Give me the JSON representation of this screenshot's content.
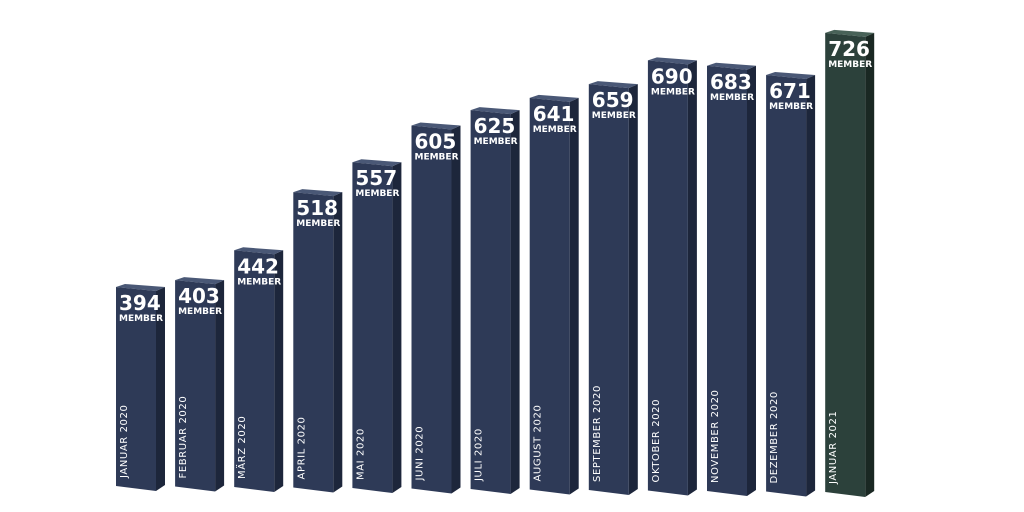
{
  "chart_data": {
    "type": "bar",
    "categories": [
      "JANUAR 2020",
      "FEBRUAR 2020",
      "MÄRZ 2020",
      "APRIL 2020",
      "MAI 2020",
      "JUNI 2020",
      "JULI 2020",
      "AUGUST 2020",
      "SEPTEMBER 2020",
      "OKTOBER 2020",
      "NOVEMBER 2020",
      "DEZEMBER 2020",
      "JANUAR 2021"
    ],
    "values": [
      394,
      403,
      442,
      518,
      557,
      605,
      625,
      641,
      659,
      690,
      683,
      671,
      726
    ],
    "value_labels": [
      "394",
      "403",
      "442",
      "518",
      "557",
      "605",
      "625",
      "641",
      "659",
      "690",
      "683",
      "671",
      "726"
    ],
    "unit_label": "MEMBER",
    "colors": {
      "bar_front": "#2e3a57",
      "bar_side": "#1d263b",
      "bar_top": "#4a5876",
      "highlight_front": "#2c413b",
      "highlight_side": "#1a2823",
      "highlight_top": "#486258"
    },
    "highlight_index": 12
  }
}
